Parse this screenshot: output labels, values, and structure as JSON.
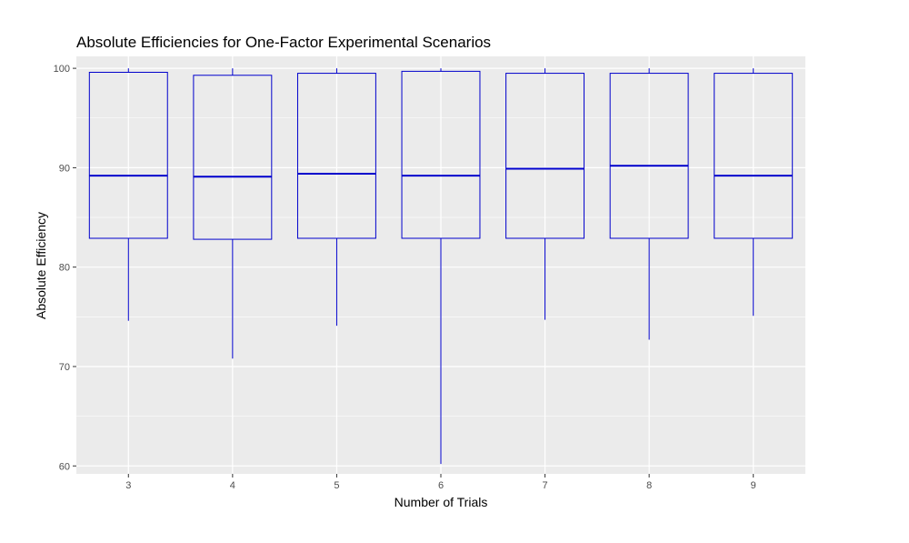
{
  "chart_data": {
    "type": "box",
    "title": "Absolute Efficiencies for One-Factor Experimental Scenarios",
    "xlabel": "Number of Trials",
    "ylabel": "Absolute Efficiency",
    "categories": [
      "3",
      "4",
      "5",
      "6",
      "7",
      "8",
      "9"
    ],
    "y_ticks": [
      60,
      70,
      80,
      90,
      100
    ],
    "y_tick_labels": [
      "60",
      "70",
      "80",
      "90",
      "100"
    ],
    "ylim": [
      59.2,
      101.2
    ],
    "grid": true,
    "box_color": "#0000cc",
    "panel_background": "#ebebeb",
    "boxes": [
      {
        "category": "3",
        "min": 74.6,
        "q1": 82.9,
        "median": 89.2,
        "q3": 99.6,
        "max": 100
      },
      {
        "category": "4",
        "min": 70.8,
        "q1": 82.8,
        "median": 89.1,
        "q3": 99.3,
        "max": 100
      },
      {
        "category": "5",
        "min": 74.1,
        "q1": 82.9,
        "median": 89.4,
        "q3": 99.5,
        "max": 100
      },
      {
        "category": "6",
        "min": 60.2,
        "q1": 82.9,
        "median": 89.2,
        "q3": 99.7,
        "max": 100
      },
      {
        "category": "7",
        "min": 74.7,
        "q1": 82.9,
        "median": 89.9,
        "q3": 99.5,
        "max": 100
      },
      {
        "category": "8",
        "min": 72.7,
        "q1": 82.9,
        "median": 90.2,
        "q3": 99.5,
        "max": 100
      },
      {
        "category": "9",
        "min": 75.1,
        "q1": 82.9,
        "median": 89.2,
        "q3": 99.5,
        "max": 100
      }
    ]
  }
}
